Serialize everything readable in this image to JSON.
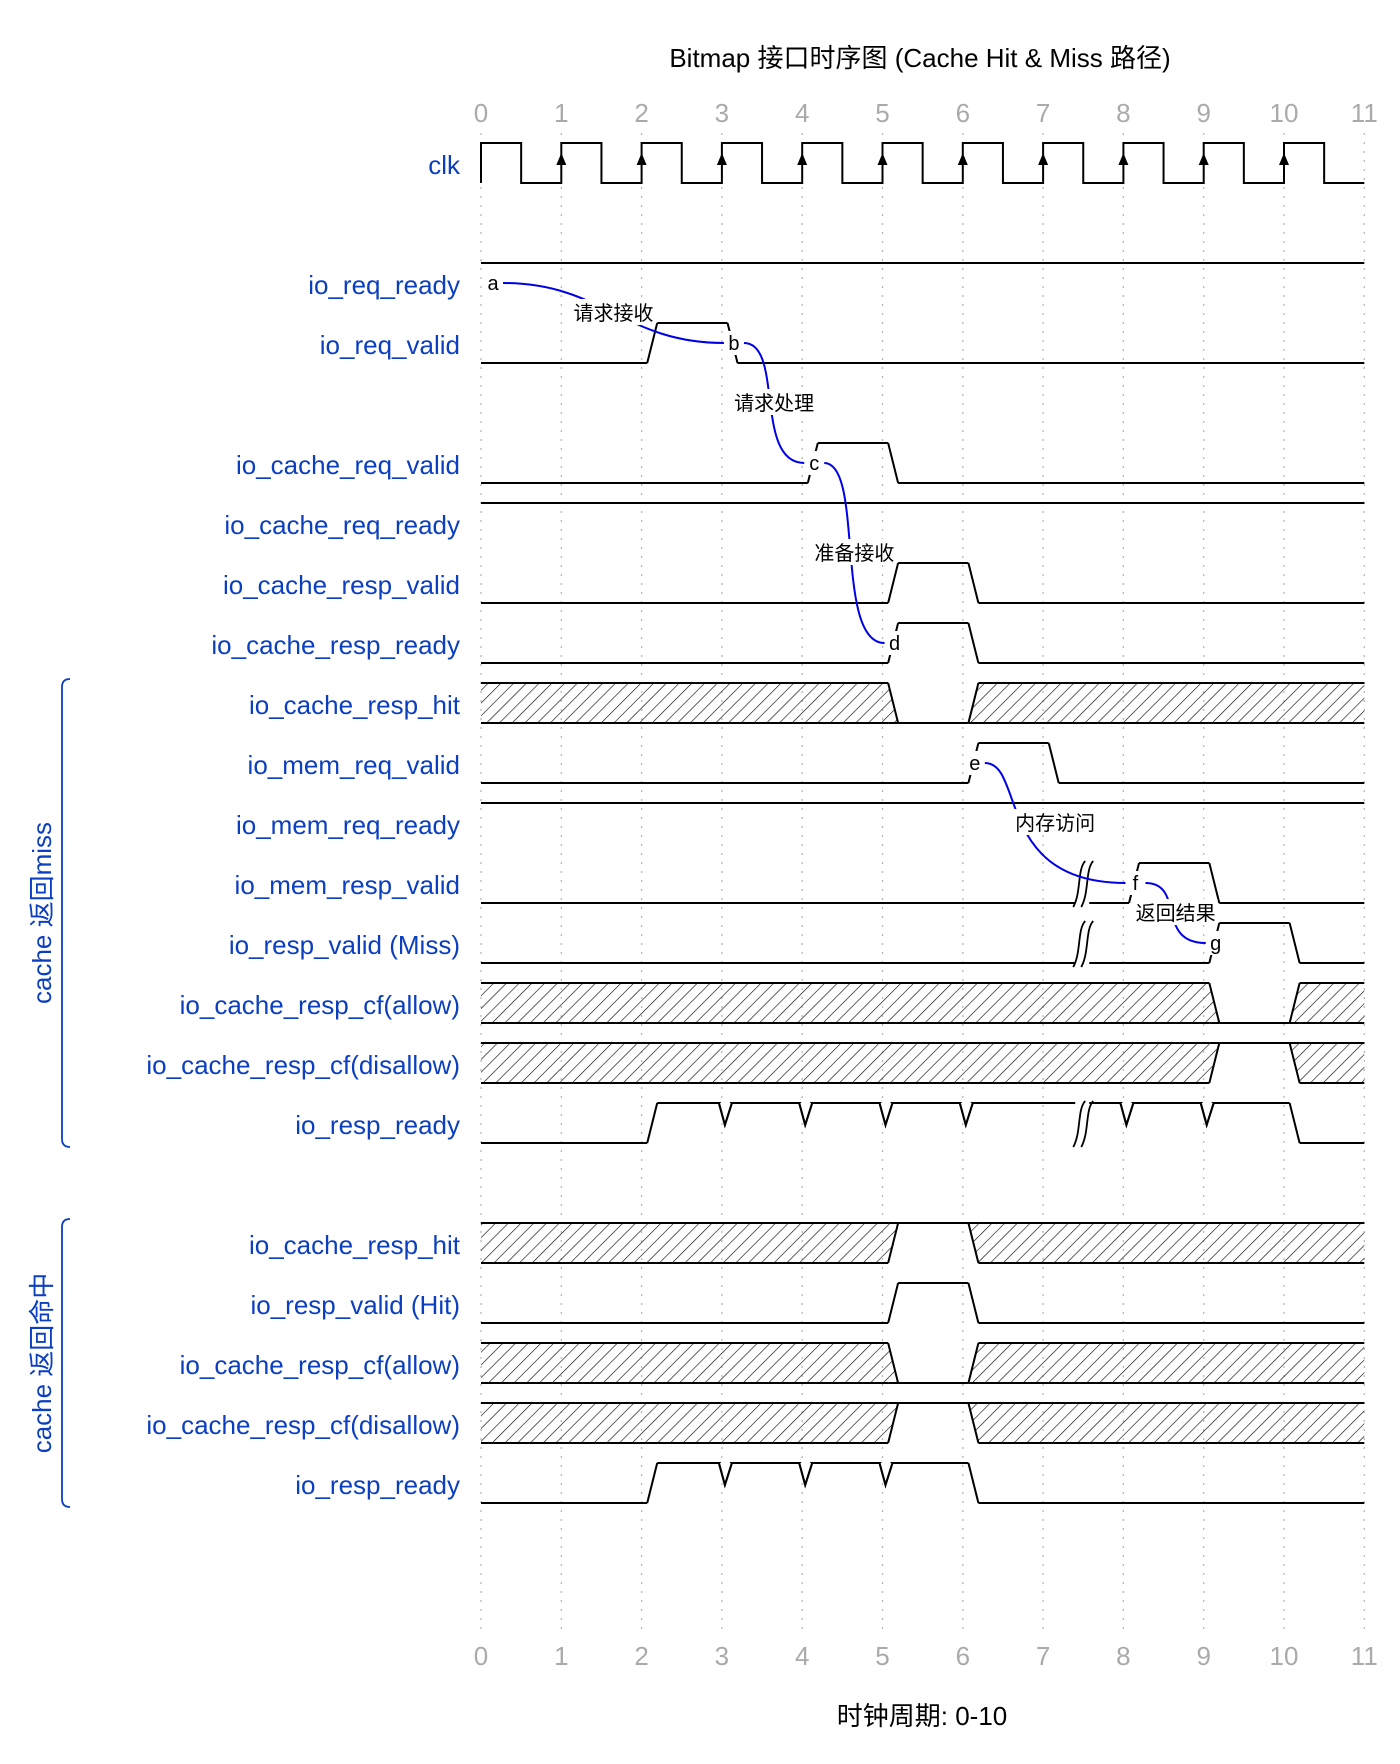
{
  "title": "Bitmap 接口时序图 (Cache Hit & Miss 路径)",
  "footer": "时钟周期: 0-10",
  "colors": {
    "label": "#0b3fc0",
    "arc": "#0000e6",
    "tick": "#aaaaaa",
    "line": "#000000"
  },
  "ticks": [
    "0",
    "1",
    "2",
    "3",
    "4",
    "5",
    "6",
    "7",
    "8",
    "9",
    "10",
    "11"
  ],
  "groups": [
    {
      "label": "cache 返回miss",
      "first_row": 9,
      "last_row": 16
    },
    {
      "label": "cache 返回命中",
      "first_row": 18,
      "last_row": 22
    }
  ],
  "signals": [
    {
      "name": "clk",
      "type": "clock"
    },
    {
      "name": "",
      "type": "blank"
    },
    {
      "name": "io_req_ready",
      "type": "wave",
      "wave": [
        [
          0,
          1
        ]
      ]
    },
    {
      "name": "io_req_valid",
      "type": "wave",
      "wave": [
        [
          0,
          0
        ],
        [
          2.07,
          1
        ],
        [
          3.07,
          0
        ]
      ]
    },
    {
      "name": "",
      "type": "blank"
    },
    {
      "name": "io_cache_req_valid",
      "type": "wave",
      "wave": [
        [
          0,
          0
        ],
        [
          4.07,
          1
        ],
        [
          5.07,
          0
        ]
      ]
    },
    {
      "name": "io_cache_req_ready",
      "type": "wave",
      "wave": [
        [
          0,
          1
        ]
      ]
    },
    {
      "name": "io_cache_resp_valid",
      "type": "wave",
      "wave": [
        [
          0,
          0
        ],
        [
          5.07,
          1
        ],
        [
          6.07,
          0
        ]
      ]
    },
    {
      "name": "io_cache_resp_ready",
      "type": "wave",
      "wave": [
        [
          0,
          0
        ],
        [
          5.07,
          1
        ],
        [
          6.07,
          0
        ]
      ]
    },
    {
      "name": "io_cache_resp_hit",
      "type": "wave",
      "wave": [
        [
          0,
          "x"
        ],
        [
          5.07,
          0
        ],
        [
          6.07,
          "x"
        ]
      ]
    },
    {
      "name": "io_mem_req_valid",
      "type": "wave",
      "wave": [
        [
          0,
          0
        ],
        [
          6.07,
          1
        ],
        [
          7.07,
          0
        ]
      ]
    },
    {
      "name": "io_mem_req_ready",
      "type": "wave",
      "wave": [
        [
          0,
          1
        ]
      ]
    },
    {
      "name": "io_mem_resp_valid",
      "type": "wave",
      "wave": [
        [
          0,
          0
        ],
        [
          8.07,
          1
        ],
        [
          9.07,
          0
        ]
      ],
      "gap": 7.5
    },
    {
      "name": "io_resp_valid (Miss)",
      "type": "wave",
      "wave": [
        [
          0,
          0
        ],
        [
          9.07,
          1
        ],
        [
          10.07,
          0
        ]
      ],
      "gap": 7.5
    },
    {
      "name": "io_cache_resp_cf(allow)",
      "type": "wave",
      "wave": [
        [
          0,
          "x"
        ],
        [
          9.07,
          0
        ],
        [
          10.07,
          "x"
        ]
      ]
    },
    {
      "name": "io_cache_resp_cf(disallow)",
      "type": "wave",
      "wave": [
        [
          0,
          "x"
        ],
        [
          9.07,
          1
        ],
        [
          10.07,
          "x"
        ]
      ]
    },
    {
      "name": "io_resp_ready",
      "type": "wave",
      "wave": [
        [
          0,
          0
        ],
        [
          2.07,
          1
        ],
        [
          10.07,
          0
        ]
      ],
      "dips": [
        3,
        4,
        5,
        6,
        8,
        9
      ],
      "gap": 7.5
    },
    {
      "name": "",
      "type": "blank"
    },
    {
      "name": "io_cache_resp_hit",
      "type": "wave",
      "wave": [
        [
          0,
          "x"
        ],
        [
          5.07,
          1
        ],
        [
          6.07,
          "x"
        ]
      ]
    },
    {
      "name": "io_resp_valid (Hit)",
      "type": "wave",
      "wave": [
        [
          0,
          0
        ],
        [
          5.07,
          1
        ],
        [
          6.07,
          0
        ]
      ]
    },
    {
      "name": "io_cache_resp_cf(allow)",
      "type": "wave",
      "wave": [
        [
          0,
          "x"
        ],
        [
          5.07,
          0
        ],
        [
          6.07,
          "x"
        ]
      ]
    },
    {
      "name": "io_cache_resp_cf(disallow)",
      "type": "wave",
      "wave": [
        [
          0,
          "x"
        ],
        [
          5.07,
          1
        ],
        [
          6.07,
          "x"
        ]
      ]
    },
    {
      "name": "io_resp_ready",
      "type": "wave",
      "wave": [
        [
          0,
          0
        ],
        [
          2.07,
          1
        ],
        [
          6.07,
          0
        ]
      ],
      "dips": [
        3,
        4,
        5
      ]
    }
  ],
  "markers": [
    {
      "id": "a",
      "row": 2,
      "t": 0.15
    },
    {
      "id": "b",
      "row": 3,
      "t": 3.15
    },
    {
      "id": "c",
      "row": 5,
      "t": 4.15
    },
    {
      "id": "d",
      "row": 8,
      "t": 5.15
    },
    {
      "id": "e",
      "row": 10,
      "t": 6.15
    },
    {
      "id": "f",
      "row": 12,
      "t": 8.15
    },
    {
      "id": "g",
      "row": 13,
      "t": 9.15
    }
  ],
  "arcs": [
    {
      "from": "a",
      "to": "b",
      "label": "请求接收"
    },
    {
      "from": "b",
      "to": "c",
      "label": "请求处理"
    },
    {
      "from": "c",
      "to": "d",
      "label": "准备接收"
    },
    {
      "from": "e",
      "to": "f",
      "label": "内存访问"
    },
    {
      "from": "f",
      "to": "g",
      "label": "返回结果"
    }
  ]
}
